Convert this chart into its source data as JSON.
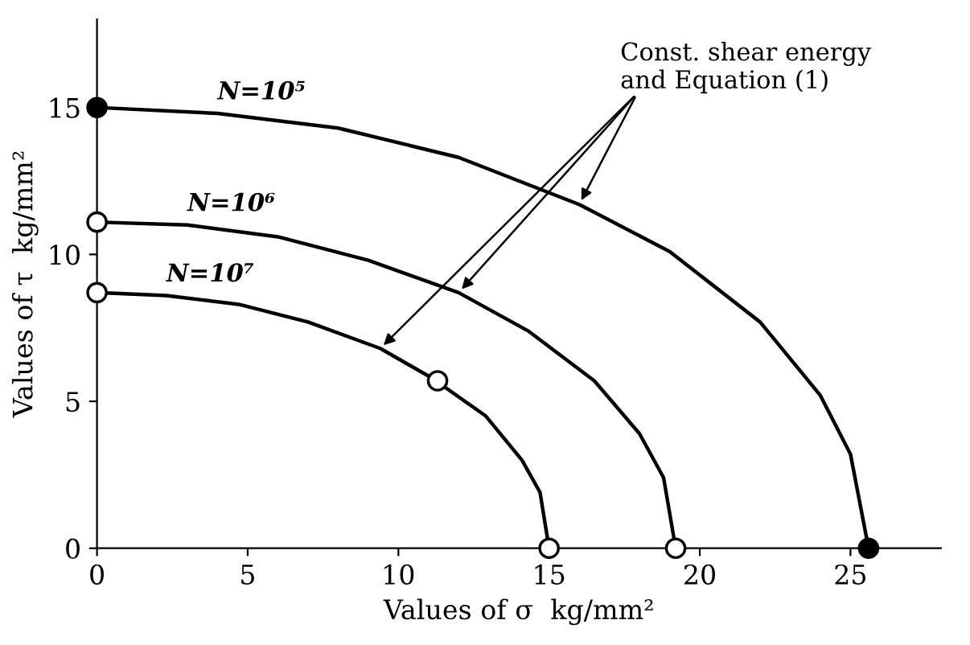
{
  "chart_data": {
    "type": "line",
    "xlabel": "Values of σ  kg/mm²",
    "ylabel": "Values of τ  kg/mm²",
    "xlim": [
      0,
      28
    ],
    "ylim": [
      0,
      18
    ],
    "xticks": [
      0,
      5,
      10,
      15,
      20,
      25
    ],
    "yticks": [
      0,
      5,
      10,
      15
    ],
    "grid": false,
    "legend": false,
    "annotations": [
      {
        "text": "Const. shear energy\nand Equation (1)",
        "x": 12,
        "y": 8.7
      }
    ],
    "series": [
      {
        "name": "N=10⁵",
        "color": "#000000",
        "marker": "none",
        "line_style": "solid",
        "x": [
          0,
          4,
          8,
          12,
          16,
          19,
          22,
          24,
          25,
          25.6
        ],
        "values": [
          15,
          14.8,
          14.3,
          13.3,
          11.7,
          10.1,
          7.7,
          5.2,
          3.2,
          0
        ]
      },
      {
        "name": "N=10⁶",
        "color": "#000000",
        "marker": "none",
        "line_style": "solid",
        "x": [
          0,
          3,
          6,
          9,
          12,
          14.3,
          16.5,
          18,
          18.8,
          19.2
        ],
        "values": [
          11.1,
          11,
          10.6,
          9.8,
          8.7,
          7.4,
          5.7,
          3.9,
          2.4,
          0
        ]
      },
      {
        "name": "N=10⁷",
        "color": "#000000",
        "marker": "none",
        "line_style": "solid",
        "x": [
          0,
          2.3,
          4.7,
          7,
          9.4,
          11.1,
          12.9,
          14.1,
          14.7,
          15
        ],
        "values": [
          8.7,
          8.6,
          8.3,
          7.7,
          6.8,
          5.8,
          4.5,
          3,
          1.9,
          0
        ]
      },
      {
        "type": "scatter",
        "color": "#000000",
        "marker": "circle",
        "x": [
          0,
          25.6
        ],
        "values": [
          15,
          0
        ]
      },
      {
        "type": "scatter",
        "color": "#ffffff",
        "marker": "circle",
        "x": [
          0,
          19.2
        ],
        "values": [
          11.1,
          0
        ]
      },
      {
        "type": "scatter",
        "color": "#ffffff",
        "marker": "circle",
        "x": [
          0,
          11.3,
          15
        ],
        "values": [
          8.7,
          5.7,
          0
        ]
      }
    ]
  }
}
